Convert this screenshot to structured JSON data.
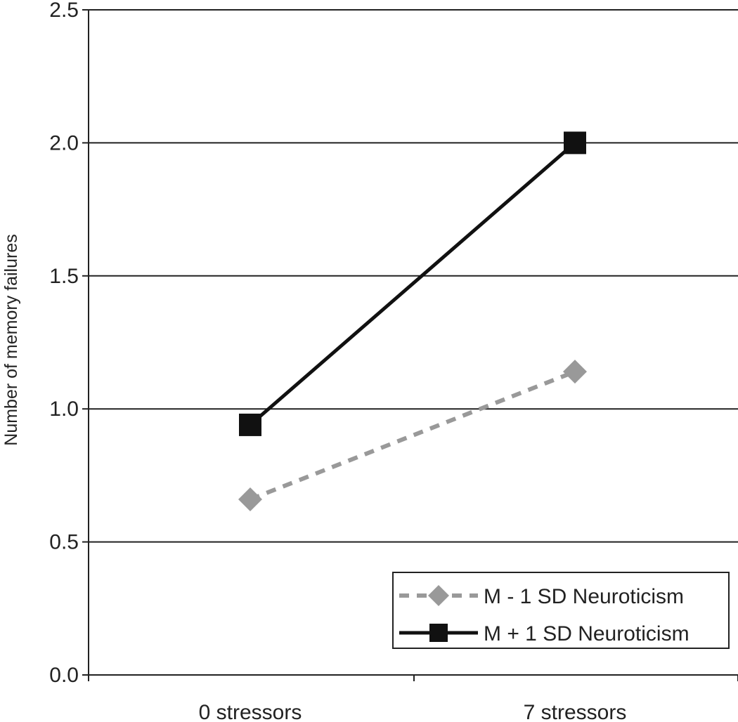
{
  "chart_data": {
    "type": "line",
    "categories": [
      "0 stressors",
      "7 stressors"
    ],
    "ylabel": "Number of memory failures",
    "xlabel": "",
    "ylim": [
      0,
      2.5
    ],
    "yticks": [
      "0.0",
      "0.5",
      "1.0",
      "1.5",
      "2.0",
      "2.5"
    ],
    "grid": true,
    "legend_position": "bottom-right",
    "series": [
      {
        "name": "M - 1 SD Neuroticism",
        "values": [
          0.66,
          1.14
        ],
        "color": "#999999",
        "style": "dashed",
        "marker": "diamond"
      },
      {
        "name": "M + 1 SD Neuroticism",
        "values": [
          0.94,
          2.0
        ],
        "color": "#111111",
        "style": "solid",
        "marker": "square"
      }
    ]
  }
}
